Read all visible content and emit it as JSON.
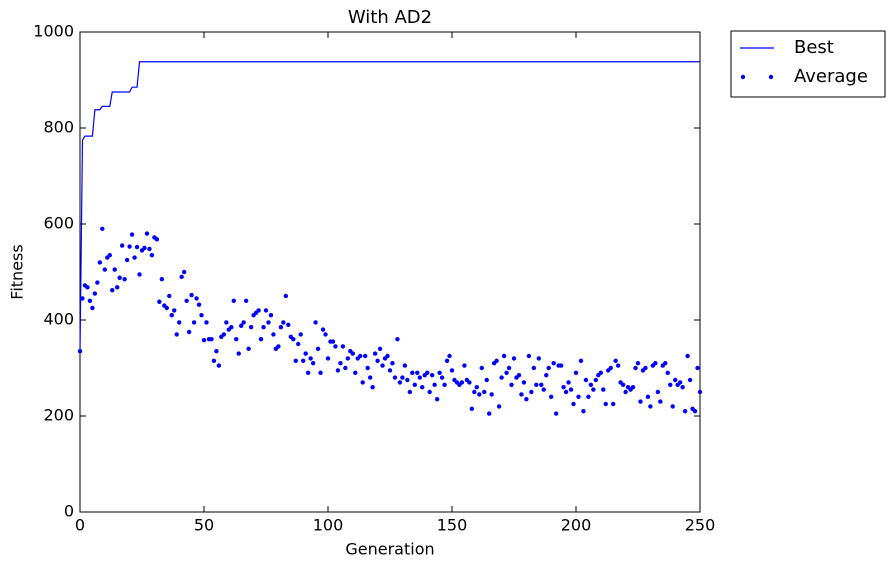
{
  "chart_data": {
    "type": "line",
    "title": "With AD2",
    "xlabel": "Generation",
    "ylabel": "Fitness",
    "xlim": [
      0,
      250
    ],
    "xticks": [
      0,
      50,
      100,
      150,
      200,
      250
    ],
    "ylim": [
      0,
      1000
    ],
    "yticks": [
      0,
      200,
      400,
      600,
      800,
      1000
    ],
    "grid": false,
    "legend": "outside upper right",
    "series": [
      {
        "name": "Best",
        "color": "#0000ff",
        "linestyle": "solid",
        "x": [
          0,
          1,
          2,
          5,
          6,
          8,
          9,
          12,
          13,
          20,
          21,
          23,
          24,
          250
        ],
        "values": [
          335,
          775,
          783,
          783,
          838,
          838,
          845,
          845,
          875,
          875,
          885,
          885,
          938,
          938
        ]
      },
      {
        "name": "Average",
        "color": "#0000ff",
        "marker": "dot",
        "x": [
          0,
          1,
          2,
          3,
          4,
          5,
          6,
          7,
          8,
          9,
          10,
          11,
          12,
          13,
          14,
          15,
          16,
          17,
          18,
          19,
          20,
          21,
          22,
          23,
          24,
          25,
          26,
          27,
          28,
          29,
          30,
          31,
          32,
          33,
          34,
          35,
          36,
          37,
          38,
          39,
          40,
          41,
          42,
          43,
          44,
          45,
          46,
          47,
          48,
          49,
          50,
          51,
          52,
          53,
          54,
          55,
          56,
          57,
          58,
          59,
          60,
          61,
          62,
          63,
          64,
          65,
          66,
          67,
          68,
          69,
          70,
          71,
          72,
          73,
          74,
          75,
          76,
          77,
          78,
          79,
          80,
          81,
          82,
          83,
          84,
          85,
          86,
          87,
          88,
          89,
          90,
          91,
          92,
          93,
          94,
          95,
          96,
          97,
          98,
          99,
          100,
          101,
          102,
          103,
          104,
          105,
          106,
          107,
          108,
          109,
          110,
          111,
          112,
          113,
          114,
          115,
          116,
          117,
          118,
          119,
          120,
          121,
          122,
          123,
          124,
          125,
          126,
          127,
          128,
          129,
          130,
          131,
          132,
          133,
          134,
          135,
          136,
          137,
          138,
          139,
          140,
          141,
          142,
          143,
          144,
          145,
          146,
          147,
          148,
          149,
          150,
          151,
          152,
          153,
          154,
          155,
          156,
          157,
          158,
          159,
          160,
          161,
          162,
          163,
          164,
          165,
          166,
          167,
          168,
          169,
          170,
          171,
          172,
          173,
          174,
          175,
          176,
          177,
          178,
          179,
          180,
          181,
          182,
          183,
          184,
          185,
          186,
          187,
          188,
          189,
          190,
          191,
          192,
          193,
          194,
          195,
          196,
          197,
          198,
          199,
          200,
          201,
          202,
          203,
          204,
          205,
          206,
          207,
          208,
          209,
          210,
          211,
          212,
          213,
          214,
          215,
          216,
          217,
          218,
          219,
          220,
          221,
          222,
          223,
          224,
          225,
          226,
          227,
          228,
          229,
          230,
          231,
          232,
          233,
          234,
          235,
          236,
          237,
          238,
          239,
          240,
          241,
          242,
          243,
          244,
          245,
          246,
          247,
          248,
          249,
          250
        ],
        "values": [
          335,
          445,
          472,
          468,
          440,
          425,
          455,
          478,
          520,
          590,
          505,
          530,
          535,
          462,
          505,
          468,
          488,
          555,
          485,
          525,
          553,
          578,
          530,
          552,
          495,
          545,
          550,
          580,
          548,
          535,
          572,
          568,
          438,
          485,
          430,
          425,
          450,
          410,
          420,
          370,
          395,
          490,
          500,
          440,
          375,
          452,
          395,
          445,
          432,
          410,
          358,
          395,
          360,
          360,
          315,
          335,
          305,
          365,
          370,
          395,
          380,
          385,
          440,
          360,
          330,
          388,
          395,
          440,
          340,
          385,
          410,
          415,
          420,
          360,
          385,
          420,
          395,
          410,
          370,
          340,
          345,
          385,
          395,
          450,
          390,
          365,
          360,
          315,
          350,
          370,
          315,
          330,
          290,
          320,
          310,
          395,
          340,
          290,
          380,
          370,
          320,
          355,
          355,
          345,
          295,
          310,
          345,
          300,
          320,
          335,
          330,
          290,
          320,
          325,
          270,
          325,
          300,
          280,
          260,
          330,
          315,
          340,
          305,
          320,
          325,
          295,
          310,
          280,
          360,
          270,
          280,
          305,
          275,
          250,
          290,
          265,
          290,
          280,
          260,
          285,
          290,
          250,
          285,
          265,
          235,
          290,
          280,
          265,
          315,
          325,
          295,
          275,
          270,
          265,
          270,
          305,
          275,
          270,
          215,
          250,
          260,
          245,
          300,
          250,
          275,
          205,
          245,
          310,
          315,
          220,
          280,
          325,
          290,
          300,
          265,
          320,
          280,
          285,
          245,
          270,
          235,
          325,
          250,
          300,
          265,
          320,
          265,
          255,
          285,
          300,
          240,
          310,
          205,
          305,
          305,
          260,
          250,
          270,
          255,
          225,
          290,
          240,
          315,
          210,
          275,
          240,
          265,
          255,
          275,
          285,
          290,
          255,
          225,
          295,
          300,
          225,
          315,
          305,
          270,
          265,
          250,
          260,
          255,
          260,
          300,
          310,
          230,
          295,
          300,
          240,
          220,
          305,
          310,
          250,
          230,
          305,
          310,
          290,
          265,
          220,
          275,
          265,
          270,
          260,
          210,
          325,
          275,
          215,
          210,
          300,
          250
        ]
      }
    ]
  }
}
